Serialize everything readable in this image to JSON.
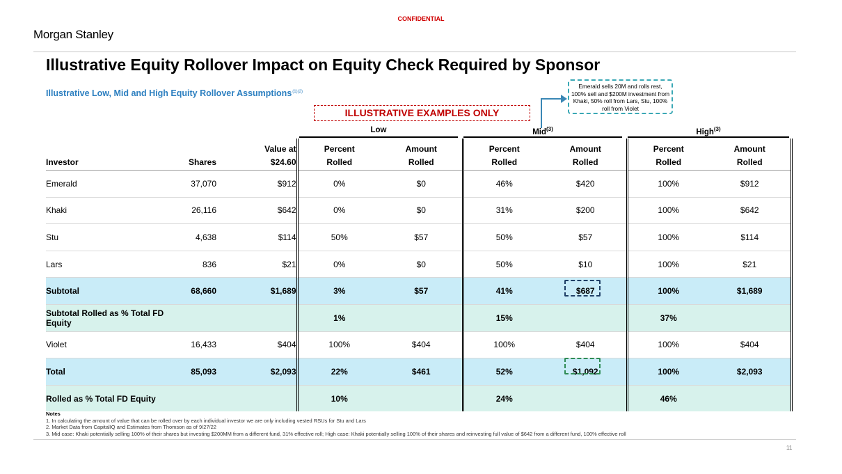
{
  "header": {
    "confidential": "CONFIDENTIAL",
    "brand": "Morgan Stanley",
    "title": "Illustrative Equity Rollover Impact on Equity Check Required by Sponsor",
    "subtitle": "Illustrative Low, Mid and High Equity Rollover Assumptions",
    "subtitle_refs": "(1)(2)",
    "banner": "ILLUSTRATIVE EXAMPLES ONLY",
    "callout": "Emerald sells 20M and rolls rest, 100% sell and $200M investment from Khaki, 50% roll from Lars, Stu, 100% roll from Violet"
  },
  "groups": {
    "low": "Low",
    "mid": "Mid",
    "mid_ref": "(3)",
    "high": "High",
    "high_ref": "(3)"
  },
  "columns": {
    "investor": "Investor",
    "shares": "Shares",
    "value_top": "Value at",
    "value_bottom": "$24.60",
    "pct_top": "Percent",
    "pct_bottom": "Rolled",
    "amt_top": "Amount",
    "amt_bottom": "Rolled"
  },
  "rows": [
    {
      "investor": "Emerald",
      "shares": "37,070",
      "value": "$912",
      "low_pct": "0%",
      "low_amt": "$0",
      "mid_pct": "46%",
      "mid_amt": "$420",
      "high_pct": "100%",
      "high_amt": "$912"
    },
    {
      "investor": "Khaki",
      "shares": "26,116",
      "value": "$642",
      "low_pct": "0%",
      "low_amt": "$0",
      "mid_pct": "31%",
      "mid_amt": "$200",
      "high_pct": "100%",
      "high_amt": "$642"
    },
    {
      "investor": "Stu",
      "shares": "4,638",
      "value": "$114",
      "low_pct": "50%",
      "low_amt": "$57",
      "mid_pct": "50%",
      "mid_amt": "$57",
      "high_pct": "100%",
      "high_amt": "$114"
    },
    {
      "investor": "Lars",
      "shares": "836",
      "value": "$21",
      "low_pct": "0%",
      "low_amt": "$0",
      "mid_pct": "50%",
      "mid_amt": "$10",
      "high_pct": "100%",
      "high_amt": "$21"
    },
    {
      "investor": "Subtotal",
      "shares": "68,660",
      "value": "$1,689",
      "low_pct": "3%",
      "low_amt": "$57",
      "mid_pct": "41%",
      "mid_amt": "$687",
      "high_pct": "100%",
      "high_amt": "$1,689"
    },
    {
      "investor": "Subtotal Rolled as % Total FD Equity",
      "shares": "",
      "value": "",
      "low_pct": "1%",
      "low_amt": "",
      "mid_pct": "15%",
      "mid_amt": "",
      "high_pct": "37%",
      "high_amt": ""
    },
    {
      "investor": "Violet",
      "shares": "16,433",
      "value": "$404",
      "low_pct": "100%",
      "low_amt": "$404",
      "mid_pct": "100%",
      "mid_amt": "$404",
      "high_pct": "100%",
      "high_amt": "$404"
    },
    {
      "investor": "Total",
      "shares": "85,093",
      "value": "$2,093",
      "low_pct": "22%",
      "low_amt": "$461",
      "mid_pct": "52%",
      "mid_amt": "$1,092",
      "high_pct": "100%",
      "high_amt": "$2,093"
    },
    {
      "investor": "Rolled as % Total FD Equity",
      "shares": "",
      "value": "",
      "low_pct": "10%",
      "low_amt": "",
      "mid_pct": "24%",
      "mid_amt": "",
      "high_pct": "46%",
      "high_amt": ""
    }
  ],
  "notes": {
    "heading": "Notes",
    "n1": "1. In calculating the amount of value that can be rolled over by each individual investor we are only including vested RSUs for Stu and Lars",
    "n2": "2. Market Data from CapitalIQ and Estimates from Thomson as of 9/27/22",
    "n3": "3. Mid case: Khaki potentially selling 100% of their shares but investing $200MM from a different fund, 31% effective roll; High case: Khaki potentially selling 100% of their shares and reinvesting full value of $642 from a different fund, 100% effective roll"
  },
  "page_number": "11",
  "colors": {
    "confidential": "#d00000",
    "subtitle": "#2c7fc0",
    "subtotal_fill": "#c9ecf8",
    "pct_fill": "#d7f2ec",
    "callout_border": "#3aa8b5"
  }
}
